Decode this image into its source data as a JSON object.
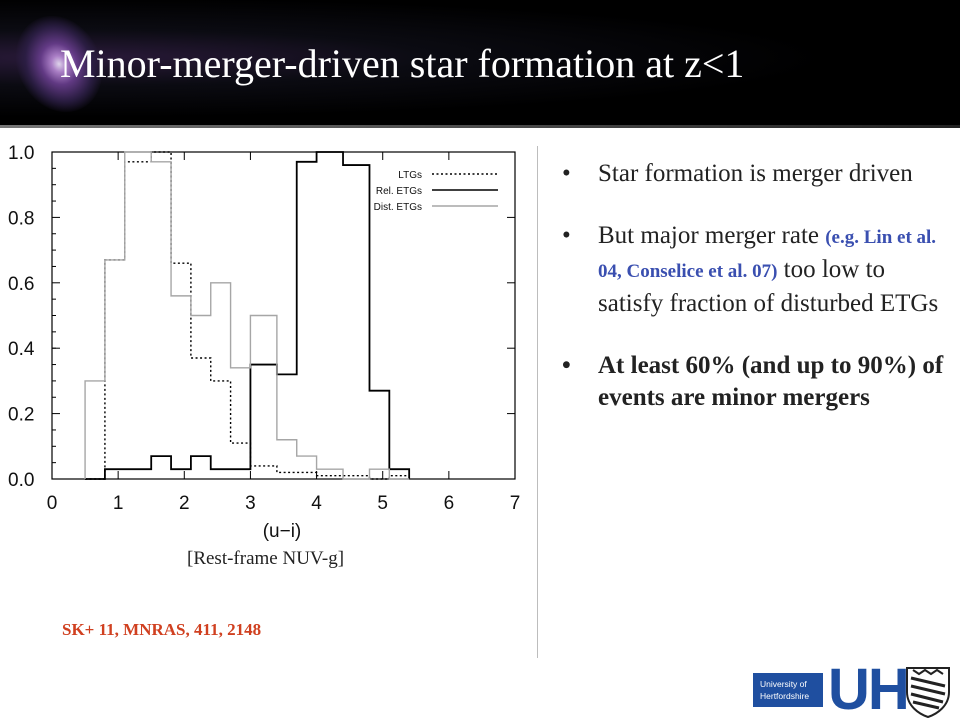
{
  "slide": {
    "title": "Minor-merger-driven star formation at z<1",
    "caption": "[Rest-frame NUV-g]",
    "reference": "SK+ 11, MNRAS, 411, 2148",
    "bullets": [
      {
        "text": "Star formation is merger driven"
      },
      {
        "pre": "But major merger rate ",
        "citation": "(e.g. Lin et al. 04, Conselice et al. 07)",
        "post": " too low to satisfy fraction of disturbed ETGs"
      },
      {
        "text": "At least 60% (and up to 90%) of events are minor mergers"
      }
    ],
    "logo": {
      "line1": "University of",
      "line2": "Hertfordshire",
      "mark": "UH",
      "crest_icon": "shield-crest-icon"
    }
  },
  "colors": {
    "header_bg": "#000000",
    "title": "#ffffff",
    "citation": "#3a4fb0",
    "reference": "#d04020",
    "logo_blue": "#1f4fa0"
  },
  "chart_data": {
    "type": "step-histogram",
    "xlabel": "(u−i)",
    "ylabel": "",
    "xlim": [
      0,
      7
    ],
    "ylim": [
      0,
      1.0
    ],
    "x_ticks": [
      "0",
      "1",
      "2",
      "3",
      "4",
      "5",
      "6",
      "7"
    ],
    "y_ticks": [
      "0.0",
      "0.2",
      "0.4",
      "0.6",
      "0.8",
      "1.0"
    ],
    "legend_position": "top-right",
    "bin_edges": [
      0.5,
      0.8,
      1.1,
      1.5,
      1.8,
      2.1,
      2.4,
      2.7,
      3.0,
      3.4,
      3.7,
      4.0,
      4.4,
      4.8,
      5.1,
      5.4
    ],
    "series": [
      {
        "name": "LTGs",
        "style": "dotted",
        "color": "#000000",
        "values": [
          0.0,
          0.67,
          0.97,
          1.0,
          0.66,
          0.37,
          0.3,
          0.11,
          0.04,
          0.02,
          0.02,
          0.01,
          0.01,
          0.0,
          0.01
        ]
      },
      {
        "name": "Rel. ETGs",
        "style": "solid",
        "color": "#000000",
        "values": [
          0.0,
          0.03,
          0.03,
          0.07,
          0.03,
          0.07,
          0.03,
          0.03,
          0.35,
          0.32,
          0.97,
          1.0,
          0.96,
          0.27,
          0.03
        ]
      },
      {
        "name": "Dist. ETGs",
        "style": "solid",
        "color": "#a6a6a6",
        "values": [
          0.3,
          0.67,
          1.0,
          0.97,
          0.56,
          0.5,
          0.6,
          0.34,
          0.5,
          0.12,
          0.07,
          0.03,
          0.0,
          0.03,
          0.0
        ]
      }
    ]
  }
}
